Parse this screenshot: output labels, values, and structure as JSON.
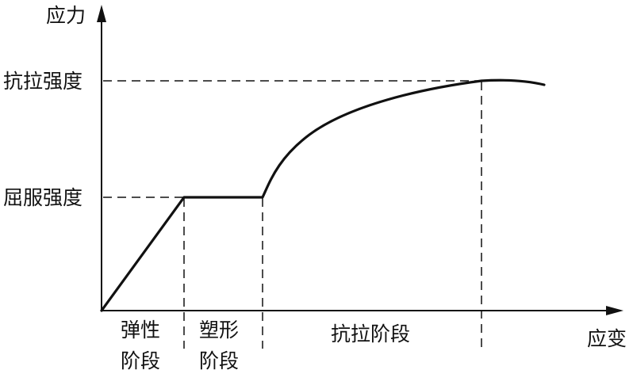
{
  "axes": {
    "y_label": "应力",
    "x_label": "应变"
  },
  "levels": {
    "tensile_strength": "抗拉强度",
    "yield_strength": "屈服强度"
  },
  "stages": {
    "elastic": {
      "line1": "弹性",
      "line2": "阶段"
    },
    "plastic": {
      "line1": "塑形",
      "line2": "阶段"
    },
    "tensile": "抗拉阶段"
  },
  "colors": {
    "ink": "#111111",
    "background": "#ffffff"
  }
}
